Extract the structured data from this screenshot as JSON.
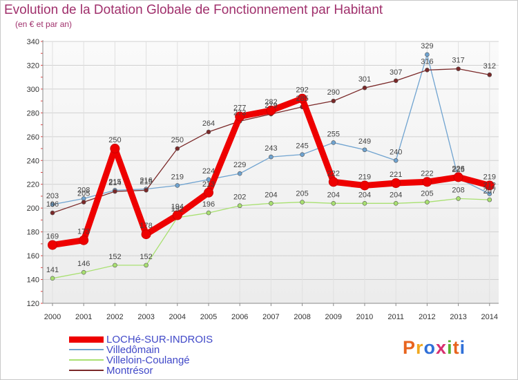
{
  "title": "Evolution de la Dotation Globale de Fonctionnement par Habitant",
  "subtitle": "(en € et par an)",
  "brand": {
    "text": "Proxiti",
    "colors": [
      "#e8641e",
      "#f0a820",
      "#3070d8",
      "#d83070",
      "#58b030",
      "#e8641e",
      "#3070d8"
    ]
  },
  "chart_data": {
    "type": "line",
    "title": "Evolution de la Dotation Globale de Fonctionnement par Habitant",
    "subtitle": "(en € et par an)",
    "xlabel": "",
    "ylabel": "",
    "grid": true,
    "legend_position": "bottom-left",
    "ylim": [
      120,
      340
    ],
    "yticks": [
      120,
      140,
      160,
      180,
      200,
      220,
      240,
      260,
      280,
      300,
      320,
      340
    ],
    "x": [
      "2000",
      "2001",
      "2002",
      "2003",
      "2004",
      "2005",
      "2006",
      "2007",
      "2008",
      "2009",
      "2010",
      "2011",
      "2012",
      "2013",
      "2014"
    ],
    "series": [
      {
        "name": "LOCHé-SUR-INDROIS",
        "color": "#ee0000",
        "values": [
          169,
          173,
          250,
          178,
          194,
          213,
          277,
          282,
          292,
          222,
          219,
          221,
          222,
          226,
          219
        ]
      },
      {
        "name": "Villedômain",
        "color": "#6fa3d0",
        "values": [
          203,
          208,
          215,
          216,
          219,
          224,
          229,
          243,
          245,
          255,
          249,
          240,
          329,
          225,
          212
        ]
      },
      {
        "name": "Villeloin-Coulangé",
        "color": "#a8e070",
        "values": [
          141,
          146,
          152,
          152,
          192,
          196,
          202,
          204,
          205,
          204,
          204,
          204,
          205,
          208,
          207
        ]
      },
      {
        "name": "Montrésor",
        "color": "#7a2828",
        "values": [
          196,
          205,
          214,
          215,
          250,
          264,
          273,
          279,
          285,
          290,
          301,
          307,
          316,
          317,
          312
        ]
      }
    ]
  }
}
